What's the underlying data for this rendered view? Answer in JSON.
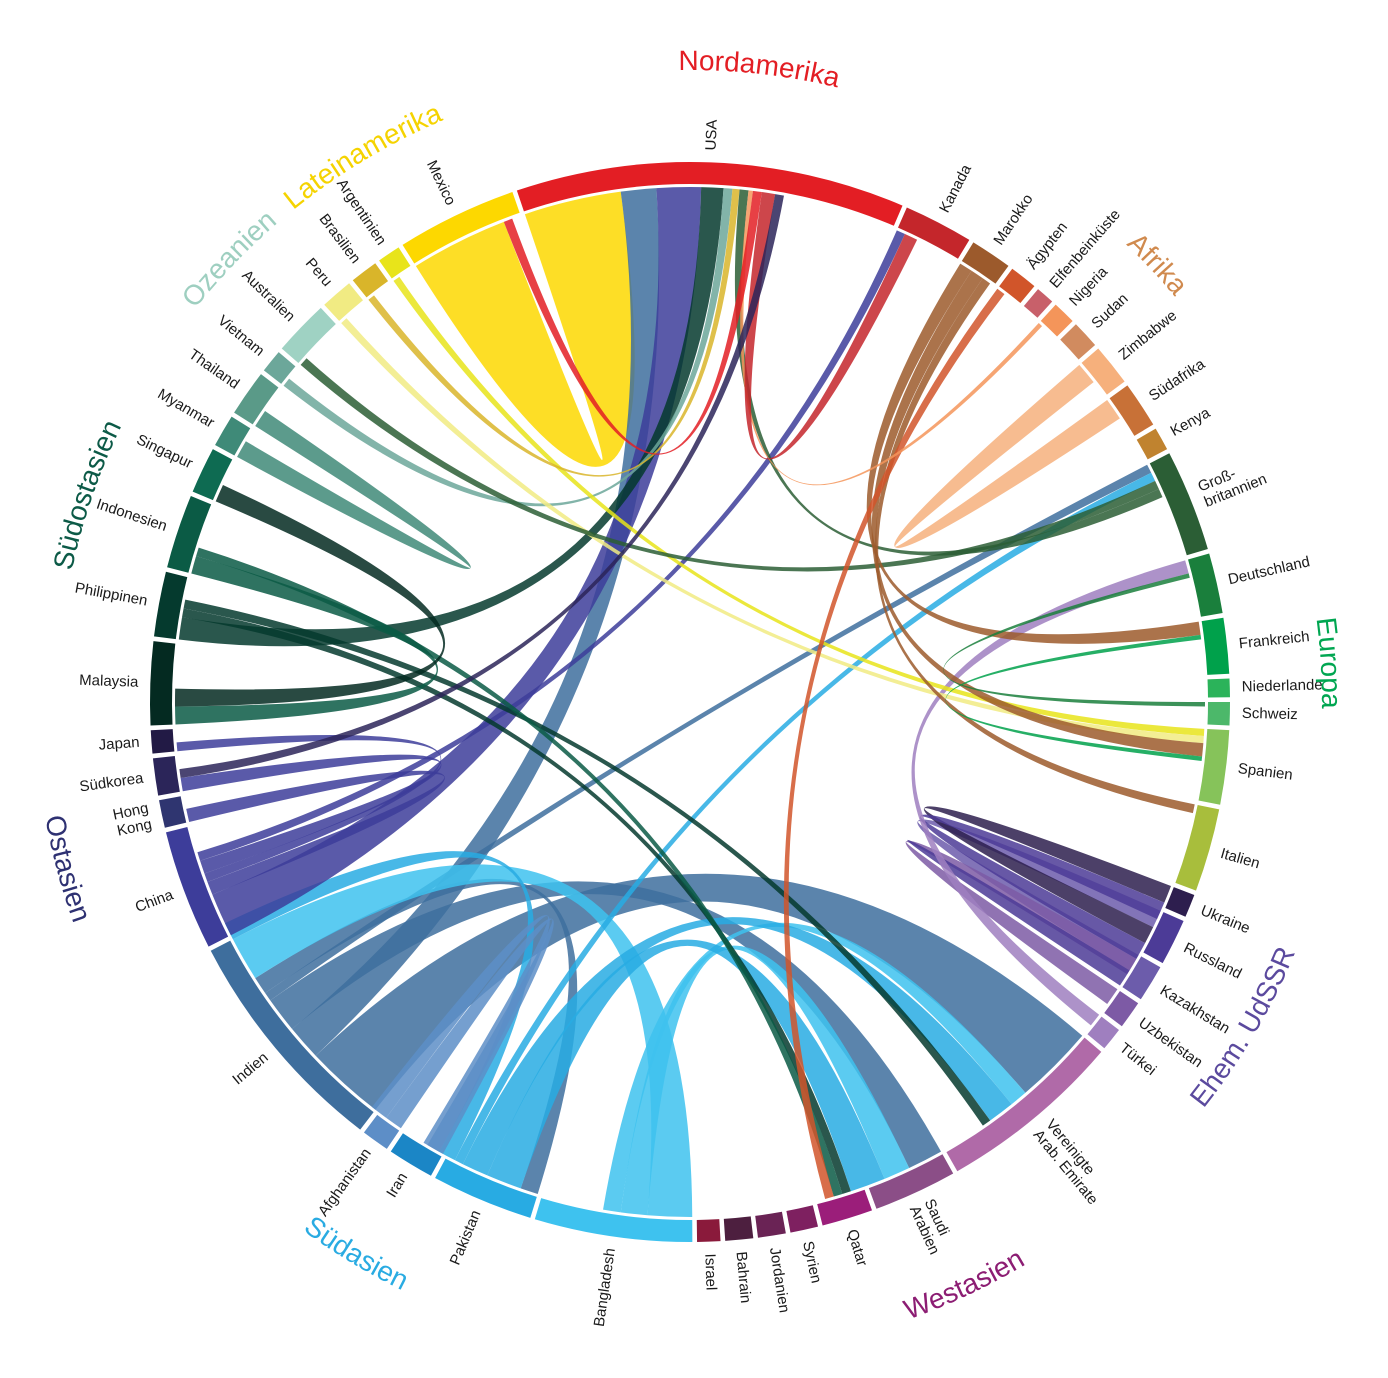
{
  "chart_data": {
    "type": "chord",
    "regions": [
      {
        "name": "Nordamerika",
        "color": "#e31e24",
        "countries": [
          {
            "name": "USA",
            "color": "#e31e24",
            "value": 42
          },
          {
            "name": "Kanada",
            "color": "#c4262b",
            "value": 7.5
          }
        ]
      },
      {
        "name": "Afrika",
        "color": "#d08a4e",
        "countries": [
          {
            "name": "Marokko",
            "color": "#9c5a2c",
            "value": 4.5
          },
          {
            "name": "Ägypten",
            "color": "#d1552a",
            "value": 3
          },
          {
            "name": "Elfenbeinküste",
            "color": "#c8606a",
            "value": 2
          },
          {
            "name": "Nigeria",
            "color": "#f4955a",
            "value": 2.5
          },
          {
            "name": "Sudan",
            "color": "#d18b5f",
            "value": 3
          },
          {
            "name": "Zimbabwe",
            "color": "#f6b07c",
            "value": 4.5
          },
          {
            "name": "Südafrika",
            "color": "#c87137",
            "value": 5
          },
          {
            "name": "Kenya",
            "color": "#c0832f",
            "value": 2.5
          }
        ]
      },
      {
        "name": "Europa",
        "color": "#00a651",
        "countries": [
          {
            "name": "Groß-\nbritannien",
            "color": "#2b5e35",
            "value": 11
          },
          {
            "name": "Deutschland",
            "color": "#1a7f3c",
            "value": 6.5
          },
          {
            "name": "Frankreich",
            "color": "#00a14b",
            "value": 6
          },
          {
            "name": "Niederlande",
            "color": "#2bb35a",
            "value": 2
          },
          {
            "name": "Schweiz",
            "color": "#4cb86a",
            "value": 2.5
          },
          {
            "name": "Spanien",
            "color": "#86c35a",
            "value": 8
          },
          {
            "name": "Italien",
            "color": "#a8be3c",
            "value": 9
          }
        ]
      },
      {
        "name": "Ehem. UdSSR",
        "color": "#5b4a9e",
        "countries": [
          {
            "name": "Ukraine",
            "color": "#2d1e4e",
            "value": 2.5
          },
          {
            "name": "Russland",
            "color": "#4c3b97",
            "value": 5
          },
          {
            "name": "Kazakhstan",
            "color": "#6c5cab",
            "value": 4
          },
          {
            "name": "Uzbekistan",
            "color": "#7d5aa5",
            "value": 3
          },
          {
            "name": "Türkei",
            "color": "#9f7fbf",
            "value": 2.5
          }
        ]
      },
      {
        "name": "Westasien",
        "color": "#8c1d73",
        "countries": [
          {
            "name": "Vereinigte\nArab. Emirate",
            "color": "#b06aa8",
            "value": 20
          },
          {
            "name": "Saudi\nArabien",
            "color": "#8b4e87",
            "value": 9
          },
          {
            "name": "Qatar",
            "color": "#9b1e7a",
            "value": 5.5
          },
          {
            "name": "Syrien",
            "color": "#7e2060",
            "value": 3
          },
          {
            "name": "Jordanien",
            "color": "#6a2355",
            "value": 3
          },
          {
            "name": "Bahrain",
            "color": "#4d1f3f",
            "value": 3
          },
          {
            "name": "Israel",
            "color": "#8a1a3b",
            "value": 2.5
          }
        ]
      },
      {
        "name": "Südasien",
        "color": "#29abe2",
        "countries": [
          {
            "name": "Bangladesh",
            "color": "#3ec2ef",
            "value": 17
          },
          {
            "name": "Pakistan",
            "color": "#28abe3",
            "value": 11
          },
          {
            "name": "Iran",
            "color": "#1b86c6",
            "value": 5
          },
          {
            "name": "Afghanistan",
            "color": "#5d8ec7",
            "value": 3
          },
          {
            "name": "Indien",
            "color": "#3e6e9d",
            "value": 25
          }
        ]
      },
      {
        "name": "Ostasien",
        "color": "#2e3172",
        "countries": [
          {
            "name": "China",
            "color": "#3d3d9a",
            "value": 13
          },
          {
            "name": "Hong\nKong",
            "color": "#2f3570",
            "value": 3
          },
          {
            "name": "Südkorea",
            "color": "#2b2559",
            "value": 4
          },
          {
            "name": "Japan",
            "color": "#221a45",
            "value": 2.5
          }
        ]
      },
      {
        "name": "Südostasien",
        "color": "#0c5a47",
        "countries": [
          {
            "name": "Malaysia",
            "color": "#042a21",
            "value": 9
          },
          {
            "name": "Philippinen",
            "color": "#053a2e",
            "value": 7
          },
          {
            "name": "Indonesien",
            "color": "#0b5b45",
            "value": 8
          },
          {
            "name": "Singapur",
            "color": "#0e6b52",
            "value": 5
          },
          {
            "name": "Myanmar",
            "color": "#3f8a78",
            "value": 3.5
          },
          {
            "name": "Thailand",
            "color": "#5a9a88",
            "value": 5
          },
          {
            "name": "Vietnam",
            "color": "#6ca79a",
            "value": 2.5
          }
        ]
      },
      {
        "name": "Ozeanien",
        "color": "#9ecfc0",
        "countries": [
          {
            "name": "Australien",
            "color": "#9fd2c3",
            "value": 6
          }
        ]
      },
      {
        "name": "Lateinamerika",
        "color": "#f5d300",
        "countries": [
          {
            "name": "Peru",
            "color": "#f1eb83",
            "value": 3.5
          },
          {
            "name": "Brasilien",
            "color": "#d9b52a",
            "value": 3
          },
          {
            "name": "Argentinien",
            "color": "#e8e41a",
            "value": 2.5
          },
          {
            "name": "Mexico",
            "color": "#fdd800",
            "value": 13
          }
        ]
      }
    ],
    "flows": [
      {
        "source": "Mexico",
        "target": "USA",
        "value": 11
      },
      {
        "source": "Indien",
        "target": "Vereinigte\nArab. Emirate",
        "value": 9
      },
      {
        "source": "Indien",
        "target": "USA",
        "value": 4
      },
      {
        "source": "Indien",
        "target": "Saudi\nArabien",
        "value": 4
      },
      {
        "source": "Indien",
        "target": "Groß-\nbritannien",
        "value": 1
      },
      {
        "source": "Indien",
        "target": "Pakistan",
        "value": 2
      },
      {
        "source": "Bangladesh",
        "target": "Indien",
        "value": 5
      },
      {
        "source": "Bangladesh",
        "target": "Saudi\nArabien",
        "value": 3
      },
      {
        "source": "Bangladesh",
        "target": "Vereinigte\nArab. Emirate",
        "value": 2
      },
      {
        "source": "Pakistan",
        "target": "Saudi\nArabien",
        "value": 4
      },
      {
        "source": "Pakistan",
        "target": "Vereinigte\nArab. Emirate",
        "value": 3
      },
      {
        "source": "Pakistan",
        "target": "Groß-\nbritannien",
        "value": 1
      },
      {
        "source": "Pakistan",
        "target": "Indien",
        "value": 2
      },
      {
        "source": "Afghanistan",
        "target": "Iran",
        "value": 2
      },
      {
        "source": "Afghanistan",
        "target": "Pakistan",
        "value": 2
      },
      {
        "source": "China",
        "target": "USA",
        "value": 5
      },
      {
        "source": "China",
        "target": "Hong\nKong",
        "value": 1.5
      },
      {
        "source": "China",
        "target": "Japan",
        "value": 1
      },
      {
        "source": "China",
        "target": "Südkorea",
        "value": 1.5
      },
      {
        "source": "China",
        "target": "Kanada",
        "value": 1
      },
      {
        "source": "Philippinen",
        "target": "USA",
        "value": 2.5
      },
      {
        "source": "Philippinen",
        "target": "Saudi\nArabien",
        "value": 1
      },
      {
        "source": "Philippinen",
        "target": "Vereinigte\nArab. Emirate",
        "value": 1
      },
      {
        "source": "Indonesien",
        "target": "Malaysia",
        "value": 2
      },
      {
        "source": "Indonesien",
        "target": "Saudi\nArabien",
        "value": 1
      },
      {
        "source": "Malaysia",
        "target": "Singapur",
        "value": 2
      },
      {
        "source": "Myanmar",
        "target": "Thailand",
        "value": 2
      },
      {
        "source": "Vietnam",
        "target": "USA",
        "value": 1
      },
      {
        "source": "Kazakhstan",
        "target": "Russland",
        "value": 2
      },
      {
        "source": "Ukraine",
        "target": "Russland",
        "value": 2
      },
      {
        "source": "Russland",
        "target": "Ukraine",
        "value": 2
      },
      {
        "source": "Uzbekistan",
        "target": "Russland",
        "value": 2
      },
      {
        "source": "Russland",
        "target": "Kazakhstan",
        "value": 1.5
      },
      {
        "source": "Türkei",
        "target": "Deutschland",
        "value": 1.5
      },
      {
        "source": "Argentinien",
        "target": "Spanien",
        "value": 0.8
      },
      {
        "source": "Brasilien",
        "target": "USA",
        "value": 0.8
      },
      {
        "source": "Peru",
        "target": "Spanien",
        "value": 0.8
      },
      {
        "source": "Groß-\nbritannien",
        "target": "Australien",
        "value": 1
      },
      {
        "source": "Groß-\nbritannien",
        "target": "USA",
        "value": 1
      },
      {
        "source": "Zimbabwe",
        "target": "Südafrika",
        "value": 2.5
      },
      {
        "source": "Marokko",
        "target": "Frankreich",
        "value": 1.5
      },
      {
        "source": "Marokko",
        "target": "Spanien",
        "value": 1.5
      },
      {
        "source": "Marokko",
        "target": "Italien",
        "value": 1
      },
      {
        "source": "Ägypten",
        "target": "Saudi\nArabien",
        "value": 1
      },
      {
        "source": "Nigeria",
        "target": "USA",
        "value": 0.5
      },
      {
        "source": "USA",
        "target": "Mexico",
        "value": 1
      },
      {
        "source": "Kanada",
        "target": "USA",
        "value": 1.5
      },
      {
        "source": "Frankreich",
        "target": "Spanien",
        "value": 0.5
      },
      {
        "source": "Deutschland",
        "target": "Schweiz",
        "value": 0.5
      },
      {
        "source": "Südkorea",
        "target": "USA",
        "value": 1
      }
    ]
  }
}
